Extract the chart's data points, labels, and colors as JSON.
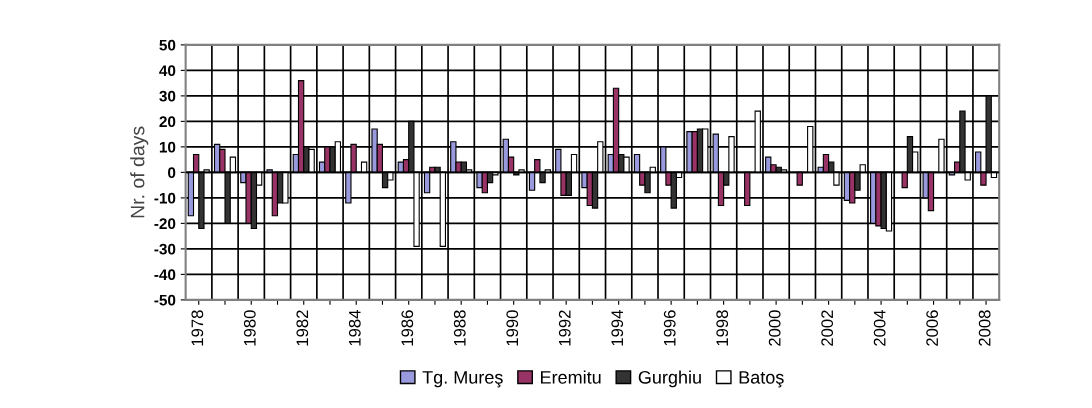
{
  "chart_data": {
    "type": "bar",
    "ylabel": "Nr. of days",
    "categories": [
      "1978",
      null,
      "1980",
      null,
      "1982",
      null,
      "1984",
      null,
      "1986",
      null,
      "1988",
      null,
      "1990",
      null,
      "1992",
      null,
      "1994",
      null,
      "1996",
      null,
      "1998",
      null,
      "2000",
      null,
      "2002",
      null,
      "2004",
      null,
      "2006",
      null,
      "2008"
    ],
    "series": [
      {
        "name": "Tg. Mureş",
        "color": "#9999dd",
        "values": [
          -17,
          11,
          -4,
          1,
          7,
          4,
          -12,
          17,
          4,
          -8,
          12,
          -6,
          13,
          -7,
          9,
          -6,
          7,
          7,
          10,
          16,
          15,
          0,
          6,
          0,
          2,
          -11,
          -20,
          0,
          -10,
          -1,
          8
        ]
      },
      {
        "name": "Eremitu",
        "color": "#993366",
        "values": [
          7,
          9,
          -20,
          -17,
          36,
          10,
          11,
          11,
          5,
          2,
          4,
          -8,
          6,
          5,
          -9,
          -13,
          33,
          -5,
          -5,
          16,
          -13,
          -13,
          3,
          -5,
          7,
          -12,
          -21,
          -6,
          -15,
          4,
          -5
        ]
      },
      {
        "name": "Gurghiu",
        "color": "#333333",
        "values": [
          -22,
          -20,
          -22,
          -12,
          10,
          10,
          0,
          -6,
          20,
          2,
          4,
          -4,
          -1,
          -4,
          -9,
          -14,
          7,
          -8,
          -14,
          17,
          -5,
          0,
          2,
          0,
          4,
          -7,
          -22,
          14,
          0,
          24,
          30
        ]
      },
      {
        "name": "Batoş",
        "color": "#ffffff",
        "values": [
          1,
          6,
          -5,
          -12,
          9,
          12,
          4,
          -3,
          -29,
          -29,
          1,
          -1,
          1,
          1,
          7,
          12,
          6,
          2,
          -2,
          17,
          14,
          24,
          1,
          18,
          -5,
          3,
          -23,
          8,
          13,
          -3,
          -2
        ]
      }
    ],
    "ylim": [
      -50,
      50
    ],
    "yticks": [
      -50,
      -40,
      -30,
      -20,
      -10,
      0,
      10,
      20,
      30,
      40,
      50
    ],
    "grid": true,
    "legend": "bottom"
  }
}
